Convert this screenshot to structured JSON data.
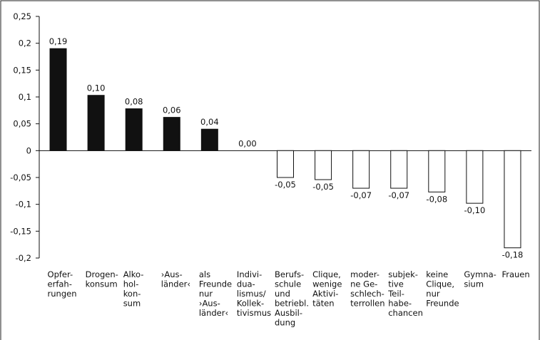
{
  "chart_data": {
    "type": "bar",
    "categories": [
      [
        "Opfer-",
        "erfah-",
        "rungen"
      ],
      [
        "Drogen-",
        "konsum"
      ],
      [
        "Alko-",
        "hol-",
        "kon-",
        "sum"
      ],
      [
        "›Aus-",
        "länder‹"
      ],
      [
        "als",
        "Freunde",
        "nur",
        "›Aus-",
        "länder‹"
      ],
      [
        "Indivi-",
        "dua-",
        "lismus/",
        "Kollek-",
        "tivismus"
      ],
      [
        "Berufs-",
        "schule",
        "und",
        "betriebl.",
        "Ausbil-",
        "dung"
      ],
      [
        "Clique,",
        "wenige",
        "Aktivi-",
        "täten"
      ],
      [
        "moder-",
        "ne Ge-",
        "schlech-",
        "terrollen"
      ],
      [
        "subjek-",
        "tive",
        "Teil-",
        "habe-",
        "chancen"
      ],
      [
        "keine",
        "Clique,",
        "nur",
        "Freunde"
      ],
      [
        "Gymna-",
        "sium"
      ],
      [
        "Frauen"
      ]
    ],
    "values": [
      0.19,
      0.103,
      0.078,
      0.062,
      0.04,
      0.0,
      -0.05,
      -0.054,
      -0.07,
      -0.07,
      -0.077,
      -0.098,
      -0.181
    ],
    "value_labels": [
      "0,19",
      "0,10",
      "0,08",
      "0,06",
      "0,04",
      "0,00",
      "-0,05",
      "-0,05",
      "-0,07",
      "-0,07",
      "-0,08",
      "-0,10",
      "-0,18"
    ],
    "colors": [
      "#111111",
      "#111111",
      "#111111",
      "#111111",
      "#111111",
      "#ffffff",
      "#ffffff",
      "#ffffff",
      "#ffffff",
      "#ffffff",
      "#ffffff",
      "#ffffff",
      "#ffffff"
    ],
    "ylim": [
      -0.2,
      0.25
    ],
    "yticks": [
      {
        "value": -0.2,
        "label": "-0,2"
      },
      {
        "value": -0.15,
        "label": "-0,15"
      },
      {
        "value": -0.1,
        "label": "-0,1"
      },
      {
        "value": -0.05,
        "label": "-0,05"
      },
      0,
      {
        "value": 0.05,
        "label": "0,05"
      },
      {
        "value": 0.1,
        "label": "0,1"
      },
      {
        "value": 0.15,
        "label": "0,15"
      },
      {
        "value": 0.2,
        "label": "0,2"
      },
      {
        "value": 0.25,
        "label": "0,25"
      }
    ],
    "grid": false
  }
}
